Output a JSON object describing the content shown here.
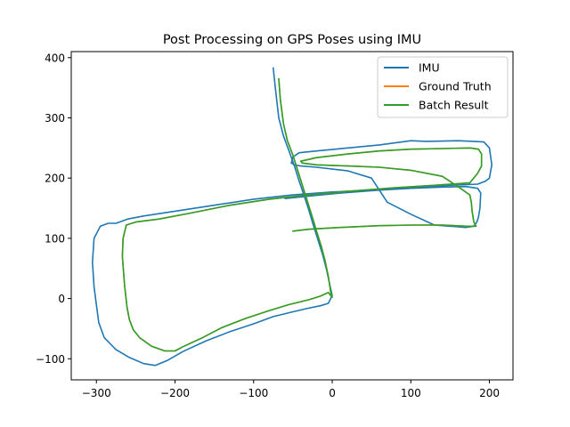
{
  "chart_data": {
    "type": "line",
    "title": "Post Processing on GPS Poses using IMU",
    "xlabel": "",
    "ylabel": "",
    "xlim": [
      -332,
      230
    ],
    "ylim": [
      -135,
      410
    ],
    "xticks": [
      -300,
      -200,
      -100,
      0,
      100,
      200
    ],
    "yticks": [
      -100,
      0,
      100,
      200,
      300,
      400
    ],
    "xtick_labels": [
      "−300",
      "−200",
      "−100",
      "0",
      "100",
      "200"
    ],
    "ytick_labels": [
      "−100",
      "0",
      "100",
      "200",
      "300",
      "400"
    ],
    "grid": false,
    "legend_position": "top-right",
    "series": [
      {
        "name": "IMU",
        "color": "#1f77b4",
        "x": [
          -75,
          -72,
          -68,
          -62,
          -55,
          -48,
          -42,
          -36,
          -30,
          -24,
          -18,
          -12,
          -7,
          -3,
          0,
          -5,
          -15,
          -30,
          -50,
          -75,
          -100,
          -130,
          -160,
          -190,
          -210,
          -225,
          -240,
          -258,
          -275,
          -290,
          -297,
          -300,
          -303,
          -305,
          -303,
          -295,
          -285,
          -275,
          -260,
          -240,
          -200,
          -150,
          -100,
          -50,
          0,
          50,
          100,
          150,
          185,
          195,
          200,
          203,
          200,
          193,
          180,
          160,
          120,
          100,
          60,
          20,
          -20,
          -42,
          -50,
          -52,
          -48,
          -40,
          -20,
          20,
          50,
          70,
          100,
          130,
          150,
          170,
          180,
          184,
          186,
          188,
          189,
          185,
          170,
          140,
          100,
          60,
          10,
          -30,
          -60
        ],
        "y": [
          383,
          345,
          300,
          270,
          245,
          220,
          195,
          172,
          148,
          122,
          97,
          72,
          47,
          22,
          5,
          -8,
          -12,
          -16,
          -22,
          -30,
          -42,
          -55,
          -70,
          -88,
          -103,
          -111,
          -108,
          -98,
          -85,
          -65,
          -40,
          -10,
          20,
          60,
          100,
          120,
          125,
          125,
          132,
          137,
          145,
          155,
          165,
          172,
          177,
          180,
          185,
          188,
          190,
          195,
          200,
          222,
          250,
          260,
          261,
          262,
          261,
          262,
          255,
          250,
          245,
          242,
          235,
          225,
          222,
          220,
          218,
          212,
          200,
          160,
          140,
          122,
          120,
          118,
          120,
          127,
          135,
          150,
          175,
          183,
          186,
          185,
          183,
          180,
          175,
          170,
          166
        ]
      },
      {
        "name": "Ground Truth",
        "color": "#ff7f0e",
        "x": [
          -68,
          -66,
          -62,
          -57,
          -50,
          -44,
          -38,
          -32,
          -26,
          -20,
          -14,
          -9,
          -5,
          -2,
          0,
          -5,
          -15,
          -30,
          -55,
          -80,
          -110,
          -140,
          -165,
          -190,
          -200,
          -213,
          -230,
          -245,
          -253,
          -258,
          -261,
          -264,
          -267,
          -266,
          -262,
          -250,
          -220,
          -180,
          -130,
          -80,
          -30,
          20,
          80,
          130,
          175,
          185,
          190,
          190,
          186,
          175,
          140,
          100,
          60,
          20,
          -20,
          -40,
          -38,
          -20,
          20,
          60,
          100,
          140,
          160,
          175,
          177,
          178,
          180,
          182,
          183,
          170,
          140,
          100,
          60,
          10,
          -30,
          -50
        ],
        "y": [
          365,
          330,
          290,
          262,
          238,
          213,
          188,
          163,
          138,
          112,
          87,
          62,
          37,
          12,
          2,
          10,
          4,
          -2,
          -10,
          -20,
          -33,
          -48,
          -65,
          -80,
          -87,
          -87,
          -79,
          -65,
          -52,
          -35,
          -15,
          20,
          70,
          100,
          122,
          127,
          132,
          142,
          155,
          165,
          172,
          178,
          184,
          188,
          192,
          208,
          220,
          240,
          248,
          250,
          249,
          248,
          245,
          240,
          234,
          228,
          225,
          222,
          220,
          218,
          213,
          203,
          186,
          172,
          160,
          145,
          128,
          122,
          120,
          120,
          122,
          122,
          121,
          118,
          115,
          112
        ]
      },
      {
        "name": "Batch Result",
        "color": "#2ca02c",
        "x": [
          -68,
          -66,
          -62,
          -57,
          -50,
          -44,
          -38,
          -32,
          -26,
          -20,
          -14,
          -9,
          -5,
          -2,
          0,
          -5,
          -15,
          -30,
          -55,
          -80,
          -110,
          -140,
          -165,
          -190,
          -200,
          -213,
          -230,
          -245,
          -253,
          -258,
          -261,
          -264,
          -267,
          -266,
          -262,
          -250,
          -220,
          -180,
          -130,
          -80,
          -30,
          20,
          80,
          130,
          175,
          185,
          190,
          190,
          186,
          175,
          140,
          100,
          60,
          20,
          -20,
          -40,
          -38,
          -20,
          20,
          60,
          100,
          140,
          160,
          175,
          177,
          178,
          180,
          182,
          183,
          170,
          140,
          100,
          60,
          10,
          -30,
          -50
        ],
        "y": [
          365,
          330,
          290,
          262,
          238,
          213,
          188,
          163,
          138,
          112,
          87,
          62,
          37,
          12,
          2,
          10,
          4,
          -2,
          -10,
          -20,
          -33,
          -48,
          -65,
          -80,
          -87,
          -87,
          -79,
          -65,
          -52,
          -35,
          -15,
          20,
          70,
          100,
          122,
          127,
          132,
          142,
          155,
          165,
          172,
          178,
          184,
          188,
          192,
          208,
          220,
          240,
          248,
          250,
          249,
          248,
          245,
          240,
          234,
          228,
          225,
          222,
          220,
          218,
          213,
          203,
          186,
          172,
          160,
          145,
          128,
          122,
          120,
          120,
          122,
          122,
          121,
          118,
          115,
          112
        ]
      }
    ]
  }
}
